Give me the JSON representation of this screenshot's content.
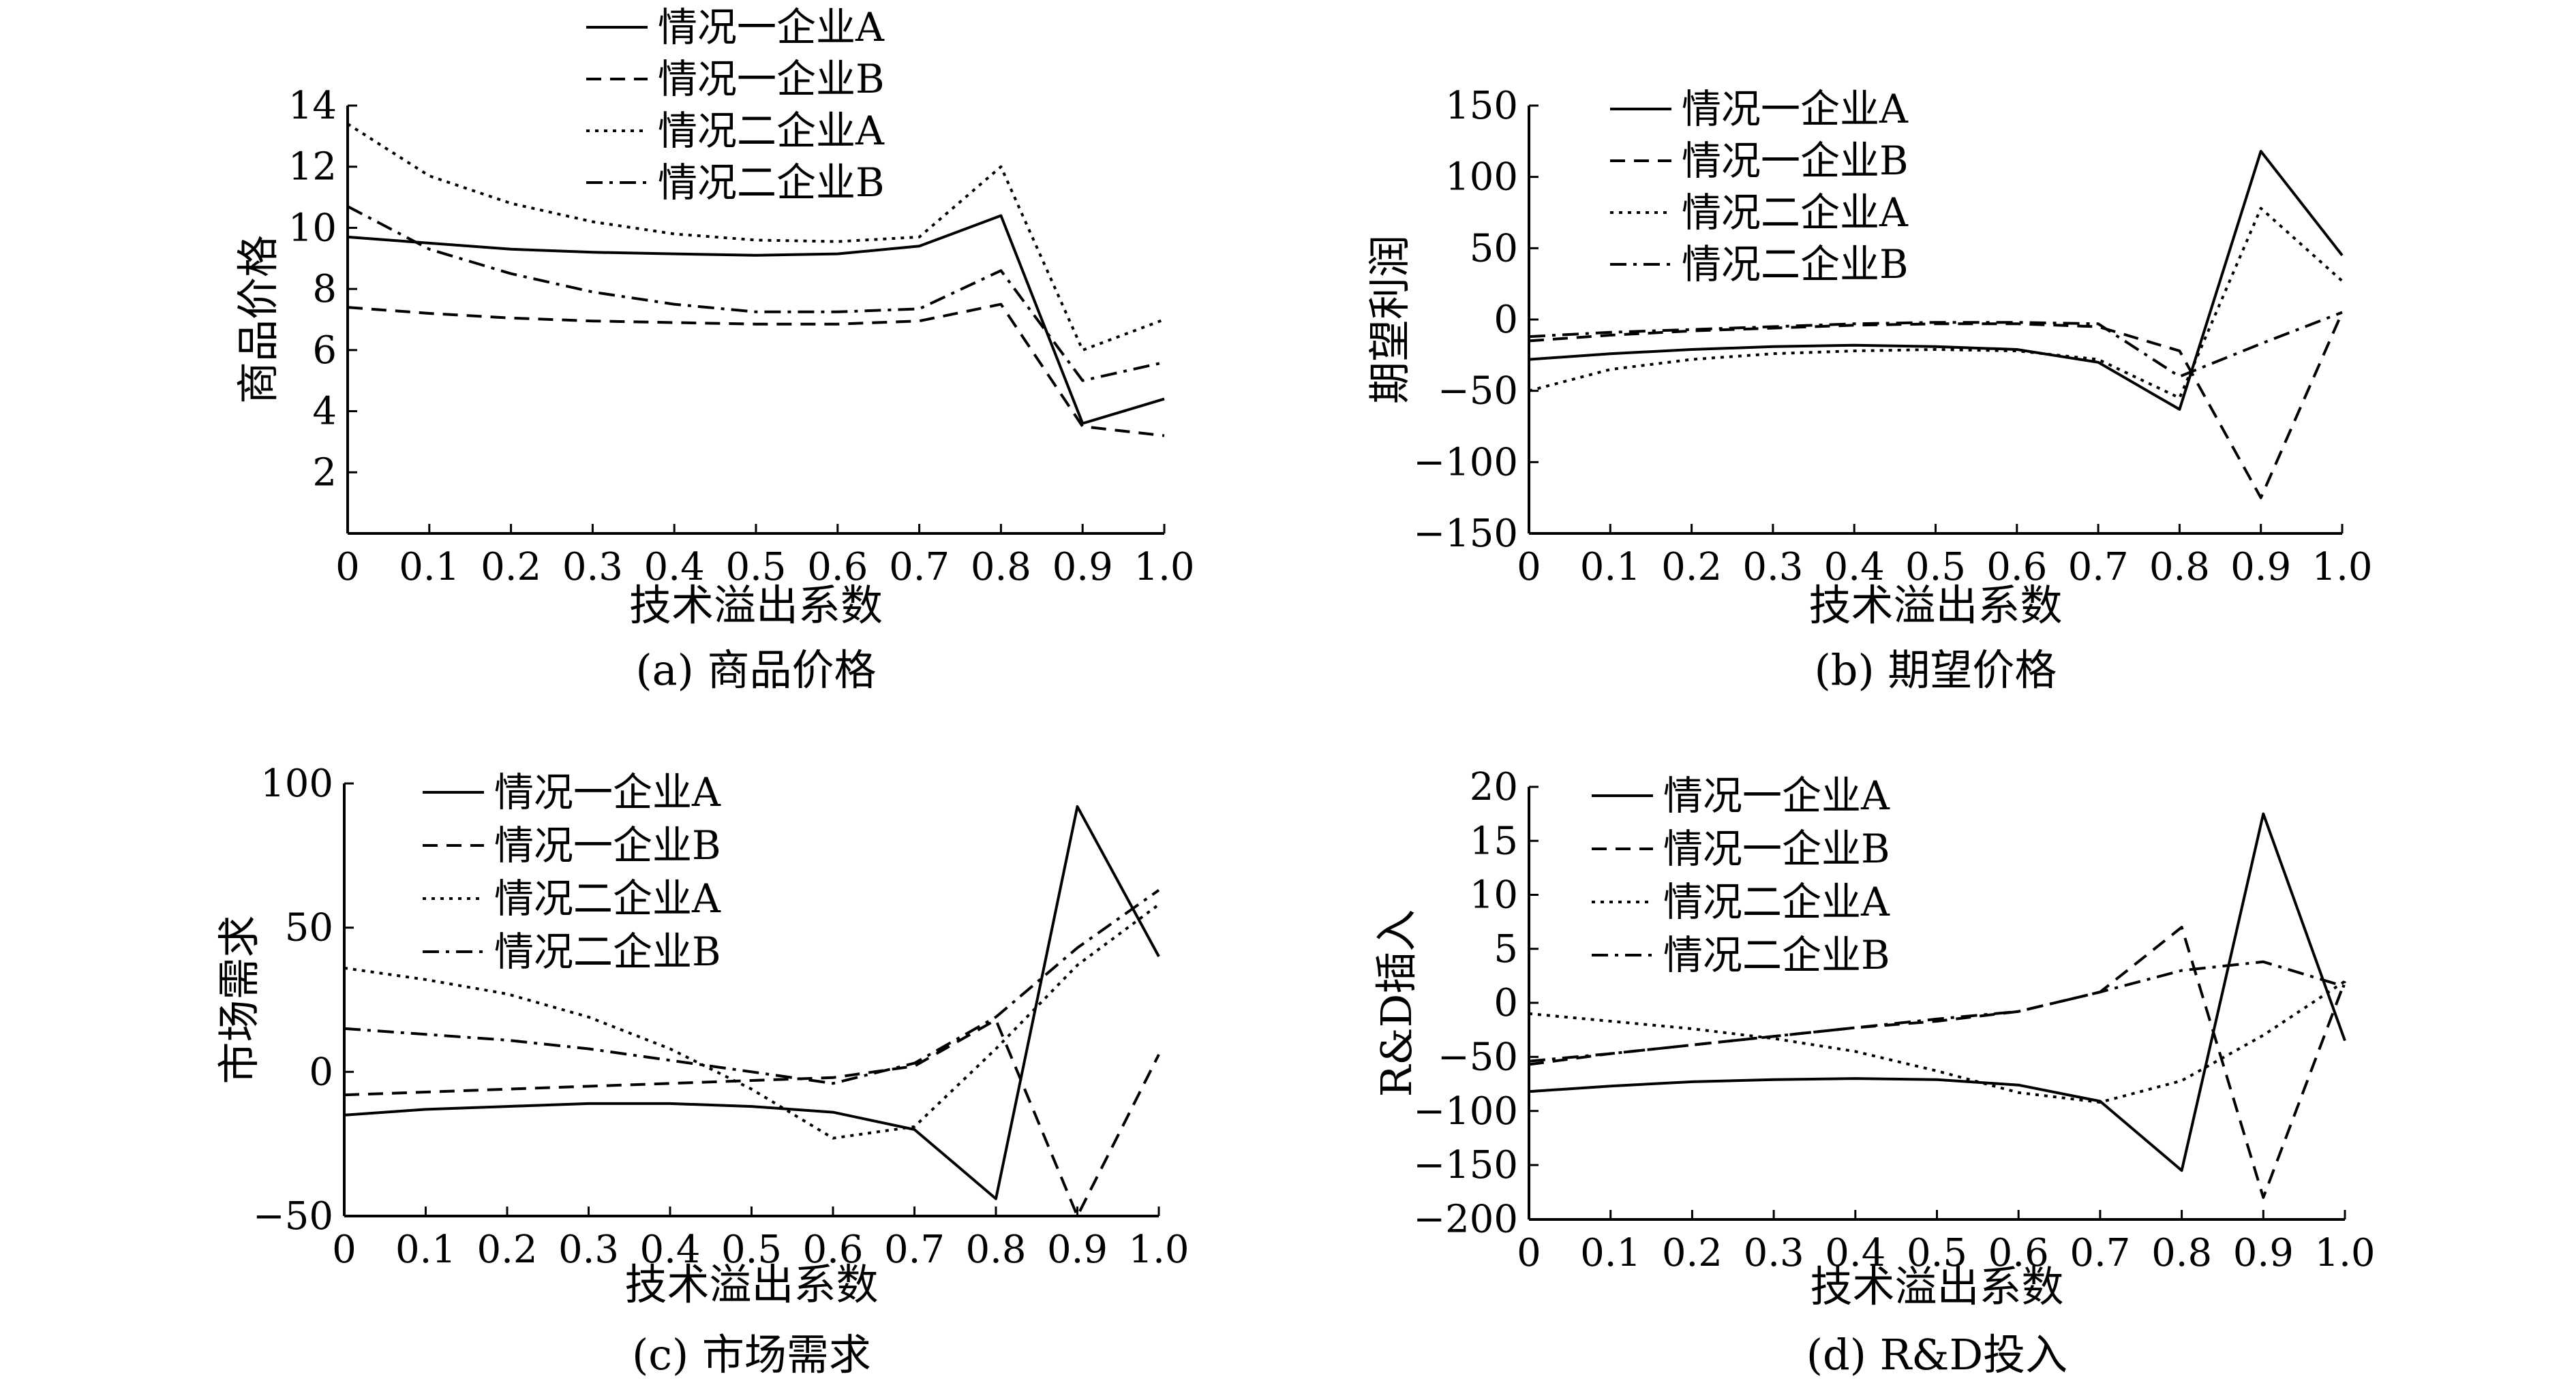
{
  "chart_data": [
    {
      "type": "line",
      "title": "(a) 商品价格",
      "xlabel": "技术溢出系数",
      "ylabel": "商品价格",
      "x": [
        0,
        0.1,
        0.2,
        0.3,
        0.4,
        0.5,
        0.6,
        0.7,
        0.8,
        0.9,
        1.0
      ],
      "xticks": [
        "0",
        "0.1",
        "0.2",
        "0.3",
        "0.4",
        "0.5",
        "0.6",
        "0.7",
        "0.8",
        "0.9",
        "1.0"
      ],
      "yticks": [
        "2",
        "4",
        "6",
        "8",
        "10",
        "12",
        "14"
      ],
      "ylim": [
        0,
        14
      ],
      "legend_position": "top",
      "series": [
        {
          "name": "情况一企业A",
          "style": "solid",
          "values": [
            9.7,
            9.5,
            9.3,
            9.2,
            9.15,
            9.1,
            9.15,
            9.4,
            10.4,
            3.6,
            4.4
          ]
        },
        {
          "name": "情况一企业B",
          "style": "dashed",
          "values": [
            7.4,
            7.2,
            7.05,
            6.95,
            6.9,
            6.85,
            6.85,
            6.95,
            7.5,
            3.5,
            3.2
          ]
        },
        {
          "name": "情况二企业A",
          "style": "dotted",
          "values": [
            13.4,
            11.7,
            10.8,
            10.2,
            9.8,
            9.6,
            9.55,
            9.7,
            12.0,
            6.0,
            7.0
          ]
        },
        {
          "name": "情况二企业B",
          "style": "dashdot",
          "values": [
            10.7,
            9.3,
            8.5,
            7.9,
            7.5,
            7.25,
            7.25,
            7.35,
            8.6,
            5.0,
            5.6
          ]
        }
      ]
    },
    {
      "type": "line",
      "title": "(b) 期望价格",
      "xlabel": "技术溢出系数",
      "ylabel": "期望利润",
      "x": [
        0,
        0.1,
        0.2,
        0.3,
        0.4,
        0.5,
        0.6,
        0.7,
        0.8,
        0.9,
        1.0
      ],
      "xticks": [
        "0",
        "0.1",
        "0.2",
        "0.3",
        "0.4",
        "0.5",
        "0.6",
        "0.7",
        "0.8",
        "0.9",
        "1.0"
      ],
      "yticks": [
        "−150",
        "−100",
        "−50",
        "0",
        "50",
        "100",
        "150"
      ],
      "ylim": [
        -150,
        150
      ],
      "legend_position": "top-left",
      "series": [
        {
          "name": "情况一企业A",
          "style": "solid",
          "values": [
            -28,
            -24,
            -21,
            -19,
            -18,
            -19,
            -21,
            -30,
            -63,
            118,
            45
          ]
        },
        {
          "name": "情况一企业B",
          "style": "dashed",
          "values": [
            -15,
            -11,
            -8,
            -6,
            -4,
            -3,
            -3,
            -5,
            -22,
            -125,
            5
          ]
        },
        {
          "name": "情况二企业A",
          "style": "dotted",
          "values": [
            -50,
            -35,
            -28,
            -24,
            -22,
            -21,
            -22,
            -28,
            -55,
            78,
            27
          ]
        },
        {
          "name": "情况二企业B",
          "style": "dashdot",
          "values": [
            -12,
            -9,
            -7,
            -5,
            -3,
            -2,
            -2,
            -3,
            -40,
            -17,
            5
          ]
        }
      ]
    },
    {
      "type": "line",
      "title": "(c) 市场需求",
      "xlabel": "技术溢出系数",
      "ylabel": "市场需求",
      "x": [
        0,
        0.1,
        0.2,
        0.3,
        0.4,
        0.5,
        0.6,
        0.7,
        0.8,
        0.9,
        1.0
      ],
      "xticks": [
        "0",
        "0.1",
        "0.2",
        "0.3",
        "0.4",
        "0.5",
        "0.6",
        "0.7",
        "0.8",
        "0.9",
        "1.0"
      ],
      "yticks": [
        "−50",
        "0",
        "50",
        "100"
      ],
      "ylim": [
        -50,
        100
      ],
      "legend_position": "top-left",
      "series": [
        {
          "name": "情况一企业A",
          "style": "solid",
          "values": [
            -15,
            -13,
            -12,
            -11,
            -11,
            -12,
            -14,
            -20,
            -44,
            92,
            40
          ]
        },
        {
          "name": "情况一企业B",
          "style": "dashed",
          "values": [
            -8,
            -7,
            -6,
            -5,
            -4,
            -3,
            -2,
            2,
            18,
            -50,
            6
          ]
        },
        {
          "name": "情况二企业A",
          "style": "dotted",
          "values": [
            36,
            32,
            27,
            19,
            8,
            -6,
            -23,
            -19,
            8,
            37,
            58
          ]
        },
        {
          "name": "情况二企业B",
          "style": "dashdot",
          "values": [
            15,
            13,
            11,
            8,
            4,
            0,
            -4,
            3,
            19,
            43,
            63
          ]
        }
      ]
    },
    {
      "type": "line",
      "title": "(d) R&D投入",
      "xlabel": "技术溢出系数",
      "ylabel": "R&D插入",
      "x": [
        0,
        0.1,
        0.2,
        0.3,
        0.4,
        0.5,
        0.6,
        0.7,
        0.8,
        0.9,
        1.0
      ],
      "xticks": [
        "0",
        "0.1",
        "0.2",
        "0.3",
        "0.4",
        "0.5",
        "0.6",
        "0.7",
        "0.8",
        "0.9",
        "1.0"
      ],
      "yticks": [
        "−200",
        "−150",
        "−100",
        "−50",
        "0",
        "5",
        "10",
        "15",
        "20"
      ],
      "ylim": [
        -200,
        20
      ],
      "legend_position": "top-left",
      "series": [
        {
          "name": "情况一企业A",
          "style": "solid",
          "values": [
            -82,
            -77,
            -73,
            -71,
            -70,
            -71,
            -76,
            -91,
            -155,
            17.5,
            -35
          ]
        },
        {
          "name": "情况一企业B",
          "style": "dashed",
          "values": [
            -57,
            -47,
            -39,
            -31,
            -23,
            -17,
            -8,
            1,
            7,
            -180,
            2
          ]
        },
        {
          "name": "情况二企业A",
          "style": "dotted",
          "values": [
            -10,
            -17,
            -24,
            -33,
            -45,
            -63,
            -83,
            -92,
            -72,
            -30,
            2
          ]
        },
        {
          "name": "情况二企业B",
          "style": "dashdot",
          "values": [
            -54,
            -47,
            -39,
            -31,
            -23,
            -15,
            -8,
            1,
            3,
            3.8,
            1.5
          ]
        }
      ]
    }
  ]
}
